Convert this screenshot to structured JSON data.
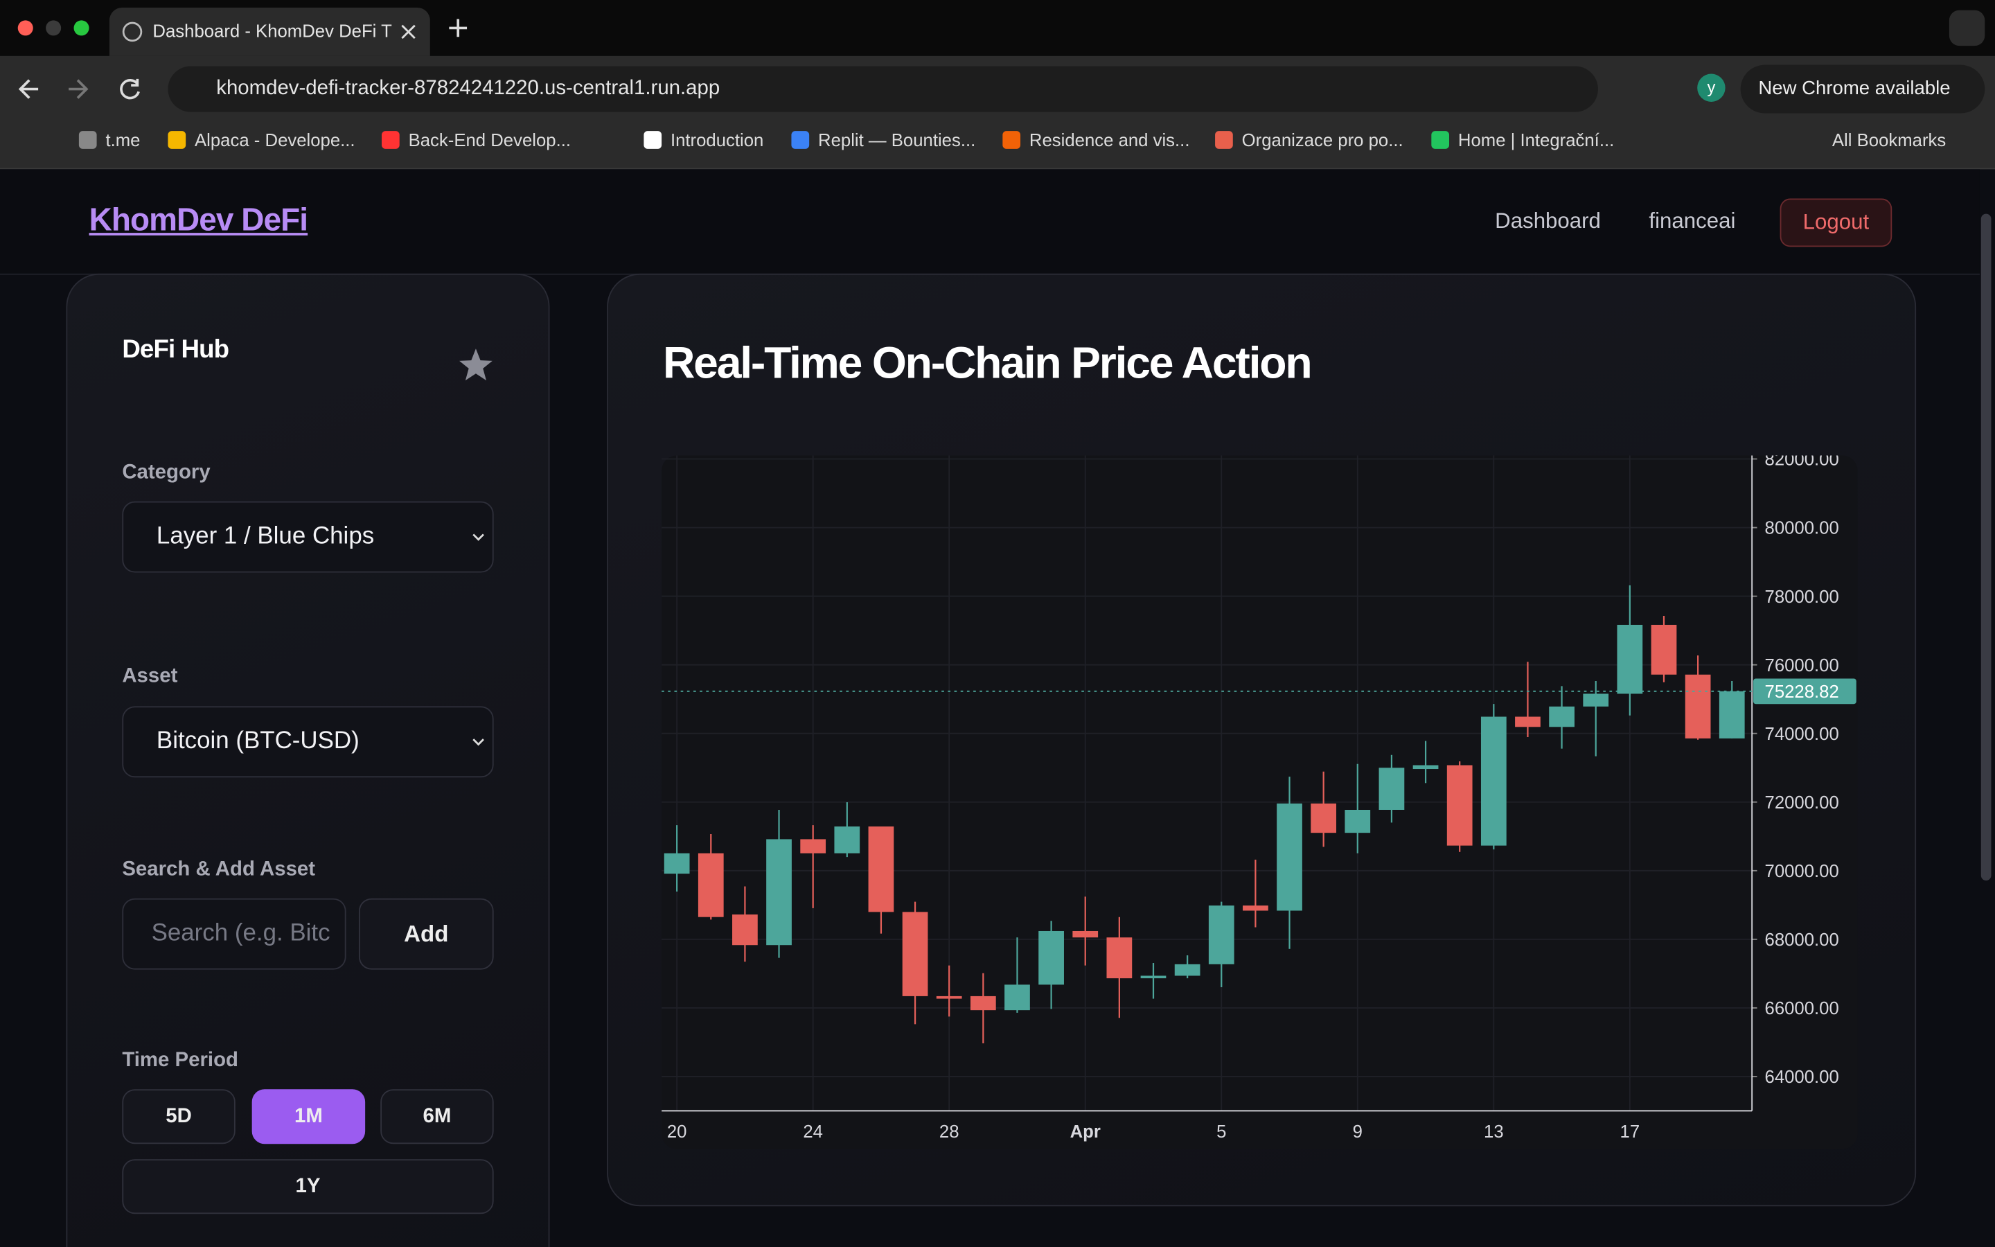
{
  "browser": {
    "tab_title": "Dashboard - KhomDev DeFi T",
    "url": "khomdev-defi-tracker-87824241220.us-central1.run.app",
    "profile": "y",
    "update_notice": "New Chrome available",
    "bookmarks": [
      "t.me",
      "Alpaca - Develope...",
      "Back-End Develop...",
      "Introduction",
      "Replit — Bounties...",
      "Residence and vis...",
      "Organizace pro po...",
      "Home | Integrační..."
    ],
    "all_bookmarks": "All Bookmarks"
  },
  "app": {
    "logo": "KhomDev DeFi",
    "nav": [
      "Dashboard",
      "financeai"
    ],
    "logout": "Logout",
    "sidebar": {
      "title": "DeFi Hub",
      "category_label": "Category",
      "category_value": "Layer 1 / Blue Chips",
      "asset_label": "Asset",
      "asset_value": "Bitcoin (BTC-USD)",
      "search_label": "Search & Add Asset",
      "search_placeholder": "Search (e.g. Bitc",
      "add_button": "Add",
      "period_label": "Time Period",
      "periods": [
        "5D",
        "1M",
        "6M",
        "1Y"
      ]
    }
  },
  "chart_data": {
    "type": "candlestick",
    "title": "Real-Time On-Chain Price Action",
    "categories": [
      "20",
      null,
      null,
      null,
      "24",
      null,
      null,
      null,
      "28",
      null,
      null,
      null,
      "Apr",
      null,
      null,
      null,
      "5",
      null,
      null,
      null,
      "9",
      null,
      null,
      null,
      "13",
      null,
      null,
      null,
      "17",
      null,
      null,
      null
    ],
    "open": [
      69913,
      70508,
      68723,
      67831,
      70917,
      70508,
      71289,
      68797,
      66343,
      66343,
      65934,
      66678,
      68240,
      68054,
      66864,
      66938,
      67273,
      68984,
      68835,
      71959,
      71103,
      71773,
      72963,
      73074,
      70731,
      74488,
      74190,
      74785,
      75157,
      77165,
      75715,
      73855
    ],
    "high": [
      71327,
      71066,
      69541,
      71773,
      71327,
      71996,
      71289,
      69095,
      67236,
      67012,
      68054,
      68537,
      69244,
      68649,
      67310,
      67533,
      69095,
      70322,
      72740,
      72888,
      73111,
      73372,
      73781,
      73186,
      74860,
      76087,
      75380,
      75529,
      78318,
      77426,
      76273,
      75529
    ],
    "low": [
      69393,
      68574,
      67347,
      67459,
      68909,
      70397,
      68165,
      65525,
      65748,
      64967,
      65860,
      65971,
      67236,
      65711,
      66269,
      66864,
      66603,
      68351,
      67719,
      70694,
      70508,
      71401,
      72554,
      70545,
      70620,
      73893,
      73558,
      73335,
      74525,
      75492,
      73818,
      73855
    ],
    "close": [
      70508,
      68649,
      67831,
      70917,
      70508,
      71289,
      68797,
      66343,
      66269,
      65934,
      66678,
      68240,
      68054,
      66864,
      66938,
      67273,
      68984,
      68835,
      71959,
      71103,
      71773,
      73000,
      73074,
      70731,
      74488,
      74190,
      74785,
      75157,
      77165,
      75715,
      73855,
      75228.82
    ],
    "up_color": "#4da69b",
    "down_color": "#e5605a",
    "last_price": 75228.82,
    "ylim": [
      63000,
      82100
    ],
    "yticks": [
      {
        "value": 64000,
        "label": "64000.00"
      },
      {
        "value": 66000,
        "label": "66000.00"
      },
      {
        "value": 68000,
        "label": "68000.00"
      },
      {
        "value": 70000,
        "label": "70000.00"
      },
      {
        "value": 72000,
        "label": "72000.00"
      },
      {
        "value": 74000,
        "label": "74000.00"
      },
      {
        "value": 76000,
        "label": "76000.00"
      },
      {
        "value": 78000,
        "label": "78000.00"
      },
      {
        "value": 80000,
        "label": "80000.00"
      },
      {
        "value": 82000,
        "label": "82000.00"
      }
    ],
    "grid": true
  }
}
